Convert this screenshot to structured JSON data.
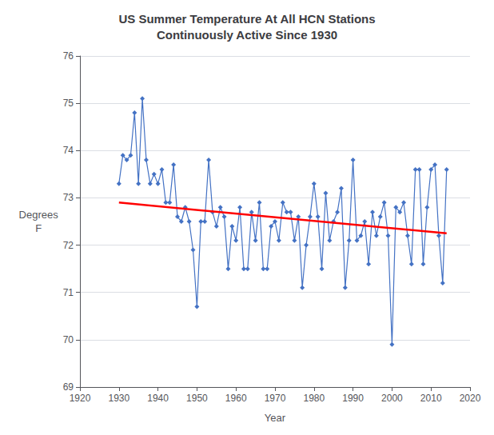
{
  "chart_data": {
    "type": "line",
    "title": "US Summer Temperature At All HCN Stations\nContinuously Active Since 1930",
    "xlabel": "Year",
    "ylabel": "Degrees\nF",
    "xlim": [
      1920,
      2020
    ],
    "xticks": [
      1920,
      1930,
      1940,
      1950,
      1960,
      1970,
      1980,
      1990,
      2000,
      2010,
      2020
    ],
    "ylim": [
      69,
      76
    ],
    "yticks": [
      69,
      70,
      71,
      72,
      73,
      74,
      75,
      76
    ],
    "grid": true,
    "series": [
      {
        "color": "#4472C4",
        "marker": "diamond",
        "x": [
          1930,
          1931,
          1932,
          1933,
          1934,
          1935,
          1936,
          1937,
          1938,
          1939,
          1940,
          1941,
          1942,
          1943,
          1944,
          1945,
          1946,
          1947,
          1948,
          1949,
          1950,
          1951,
          1952,
          1953,
          1954,
          1955,
          1956,
          1957,
          1958,
          1959,
          1960,
          1961,
          1962,
          1963,
          1964,
          1965,
          1966,
          1967,
          1968,
          1969,
          1970,
          1971,
          1972,
          1973,
          1974,
          1975,
          1976,
          1977,
          1978,
          1979,
          1980,
          1981,
          1982,
          1983,
          1984,
          1985,
          1986,
          1987,
          1988,
          1989,
          1990,
          1991,
          1992,
          1993,
          1994,
          1995,
          1996,
          1997,
          1998,
          1999,
          2000,
          2001,
          2002,
          2003,
          2004,
          2005,
          2006,
          2007,
          2008,
          2009,
          2010,
          2011,
          2012,
          2013,
          2014
        ],
        "values": [
          73.3,
          73.9,
          73.8,
          73.9,
          74.8,
          73.3,
          75.1,
          73.8,
          73.3,
          73.5,
          73.3,
          73.6,
          72.9,
          72.9,
          73.7,
          72.6,
          72.5,
          72.8,
          72.5,
          71.9,
          70.7,
          72.5,
          72.5,
          73.8,
          72.7,
          72.4,
          72.8,
          72.6,
          71.5,
          72.4,
          72.1,
          72.8,
          71.5,
          71.5,
          72.7,
          72.1,
          72.9,
          71.5,
          71.5,
          72.4,
          72.5,
          72.1,
          72.9,
          72.7,
          72.7,
          72.1,
          72.6,
          71.1,
          72.0,
          72.6,
          73.3,
          72.6,
          71.5,
          73.1,
          72.1,
          72.5,
          72.7,
          73.2,
          71.1,
          72.1,
          73.8,
          72.1,
          72.2,
          72.5,
          71.6,
          72.7,
          72.2,
          72.6,
          72.9,
          72.2,
          69.9,
          72.8,
          72.7,
          72.9,
          72.2,
          71.6,
          73.6,
          73.6,
          71.6,
          72.8,
          73.6,
          73.7,
          72.2,
          71.2,
          73.6
        ]
      },
      {
        "color": "#FF0000",
        "marker": "none",
        "x": [
          1930,
          2014
        ],
        "values": [
          72.9,
          72.25
        ]
      }
    ]
  }
}
